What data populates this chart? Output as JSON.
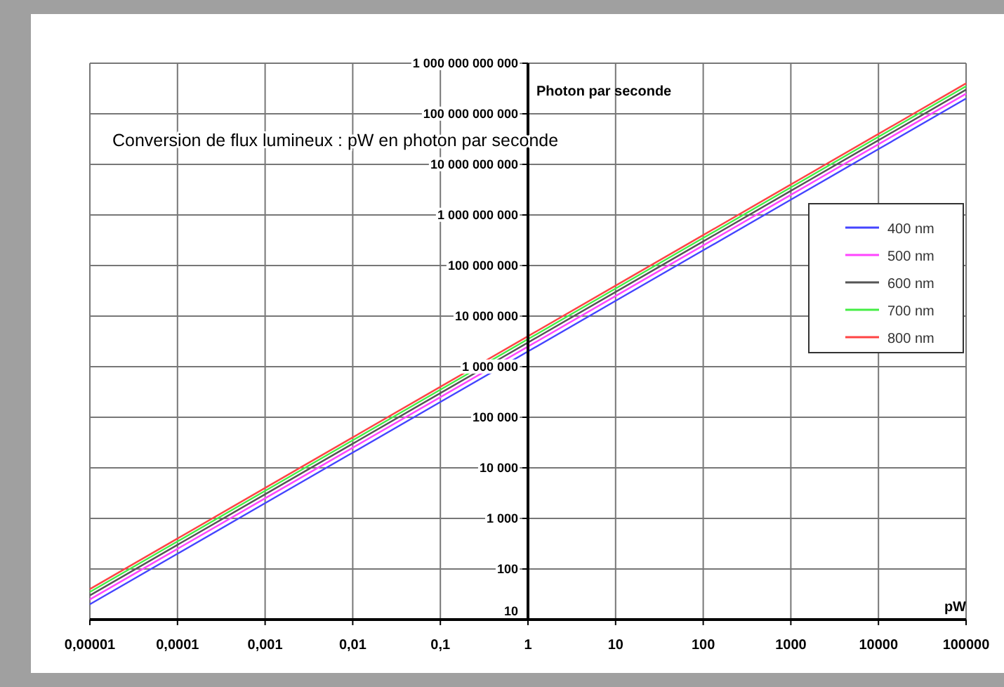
{
  "chart_data": {
    "type": "line",
    "title": "Conversion de flux lumineux : pW en photon par seconde",
    "xlabel": "pW",
    "ylabel": "Photon par seconde",
    "log": "xy",
    "grid": true,
    "legend": "right",
    "marker": "none",
    "line_style": "solid",
    "x": [
      1e-05,
      0.0001,
      0.001,
      0.01,
      0.1,
      1,
      10,
      100,
      1000,
      10000,
      100000
    ],
    "xlim": [
      1e-05,
      100000
    ],
    "xticks": [
      {
        "value": 1e-05,
        "label": "0,00001"
      },
      {
        "value": 0.0001,
        "label": "0,0001"
      },
      {
        "value": 0.001,
        "label": "0,001"
      },
      {
        "value": 0.01,
        "label": "0,01"
      },
      {
        "value": 0.1,
        "label": "0,1"
      },
      1,
      10,
      100,
      1000,
      10000,
      100000
    ],
    "ylim": [
      10,
      1000000000000
    ],
    "yticks": [
      10,
      100,
      {
        "value": 1000,
        "label": "1 000"
      },
      {
        "value": 10000,
        "label": "10 000"
      },
      {
        "value": 100000,
        "label": "100 000"
      },
      {
        "value": 1000000,
        "label": "1 000 000"
      },
      {
        "value": 10000000,
        "label": "10 000 000"
      },
      {
        "value": 100000000,
        "label": "100 000 000"
      },
      {
        "value": 1000000000,
        "label": "1 000 000 000"
      },
      {
        "value": 10000000000,
        "label": "10 000 000 000"
      },
      {
        "value": 100000000000,
        "label": "100 000 000 000"
      },
      {
        "value": 1000000000000,
        "label": "1 000 000 000 000"
      }
    ],
    "series": [
      {
        "name": "400 nm",
        "color": "#4444ff",
        "values": [
          20,
          200,
          2000,
          20000,
          200000,
          2000000,
          20000000,
          200000000,
          2000000000,
          20000000000,
          200000000000
        ]
      },
      {
        "name": "500 nm",
        "color": "#ff44ff",
        "values": [
          25,
          250,
          2500,
          25000,
          250000,
          2500000,
          25000000,
          250000000,
          2500000000,
          25000000000,
          250000000000
        ]
      },
      {
        "name": "600 nm",
        "color": "#555555",
        "values": [
          30,
          300,
          3000,
          30000,
          300000,
          3000000,
          30000000,
          300000000,
          3000000000,
          30000000000,
          300000000000
        ]
      },
      {
        "name": "700 nm",
        "color": "#44ee44",
        "values": [
          35,
          350,
          3500,
          35000,
          350000,
          3500000,
          35000000,
          350000000,
          3500000000,
          35000000000,
          350000000000
        ]
      },
      {
        "name": "800 nm",
        "color": "#ff4444",
        "values": [
          40,
          400,
          4000,
          40000,
          400000,
          4000000,
          40000000,
          400000000,
          4000000000,
          40000000000,
          400000000000
        ]
      }
    ]
  }
}
